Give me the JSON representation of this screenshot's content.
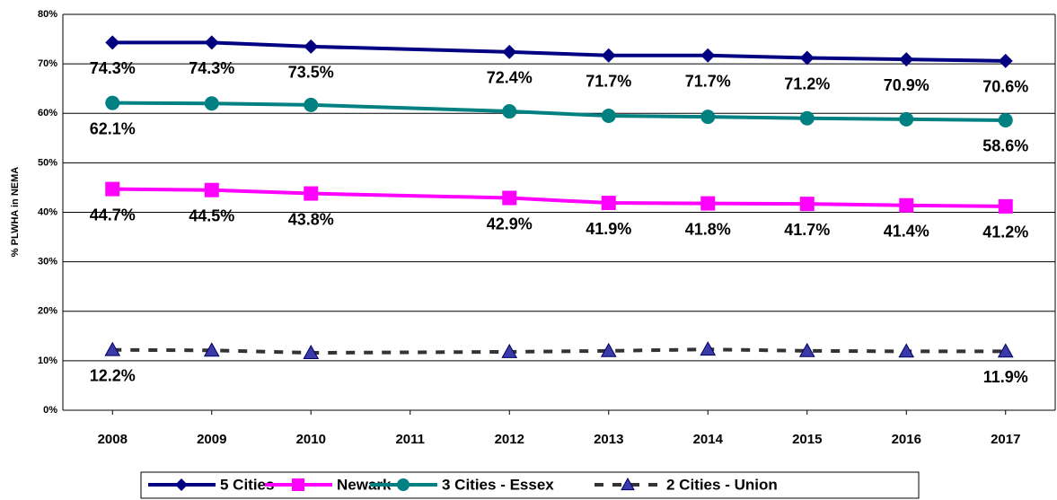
{
  "chart_data": {
    "type": "line",
    "y_label": "% PLWHA in NEMA",
    "x": [
      2008,
      2009,
      2010,
      2012,
      2013,
      2014,
      2015,
      2016,
      2017
    ],
    "xlim": [
      2007.5,
      2017.5
    ],
    "xticks": [
      2008,
      2009,
      2010,
      2011,
      2012,
      2013,
      2014,
      2015,
      2016,
      2017
    ],
    "ylim": [
      0,
      80
    ],
    "yticks": [
      {
        "value": 0,
        "label": "0%"
      },
      {
        "value": 10,
        "label": "10%"
      },
      {
        "value": 20,
        "label": "20%"
      },
      {
        "value": 30,
        "label": "30%"
      },
      {
        "value": 40,
        "label": "40%"
      },
      {
        "value": 50,
        "label": "50%"
      },
      {
        "value": 60,
        "label": "60%"
      },
      {
        "value": 70,
        "label": "70%"
      },
      {
        "value": 80,
        "label": "80%"
      }
    ],
    "grid": true,
    "legend": "bottom",
    "series": [
      {
        "name": "5 Cities",
        "color": "#000080",
        "marker": "diamond",
        "marker_color": "#000080",
        "dash": false,
        "values": [
          74.3,
          74.3,
          73.5,
          72.4,
          71.7,
          71.7,
          71.2,
          70.9,
          70.6
        ],
        "value_labels": [
          "74.3%",
          "74.3%",
          "73.5%",
          "72.4%",
          "71.7%",
          "71.7%",
          "71.2%",
          "70.9%",
          "70.6%"
        ]
      },
      {
        "name": "Newark",
        "color": "#ff00ff",
        "marker": "square",
        "marker_color": "#ff00ff",
        "dash": false,
        "values": [
          44.7,
          44.5,
          43.8,
          42.9,
          41.9,
          41.8,
          41.7,
          41.4,
          41.2
        ],
        "value_labels": [
          "44.7%",
          "44.5%",
          "43.8%",
          "42.9%",
          "41.9%",
          "41.8%",
          "41.7%",
          "41.4%",
          "41.2%"
        ]
      },
      {
        "name": "3 Cities - Essex",
        "color": "#008080",
        "marker": "circle",
        "marker_color": "#008080",
        "dash": false,
        "values": [
          62.1,
          62.0,
          61.7,
          60.4,
          59.5,
          59.3,
          59.0,
          58.8,
          58.6
        ],
        "value_labels": [
          "62.1%",
          null,
          null,
          null,
          null,
          null,
          null,
          null,
          "58.6%"
        ]
      },
      {
        "name": "2 Cities - Union",
        "color": "#333333",
        "marker": "triangle",
        "marker_color": "#3a3aa8",
        "dash": true,
        "values": [
          12.2,
          12.1,
          11.6,
          11.8,
          12.0,
          12.3,
          12.0,
          11.9,
          11.9
        ],
        "value_labels": [
          "12.2%",
          null,
          null,
          null,
          null,
          null,
          null,
          null,
          "11.9%"
        ]
      }
    ]
  }
}
